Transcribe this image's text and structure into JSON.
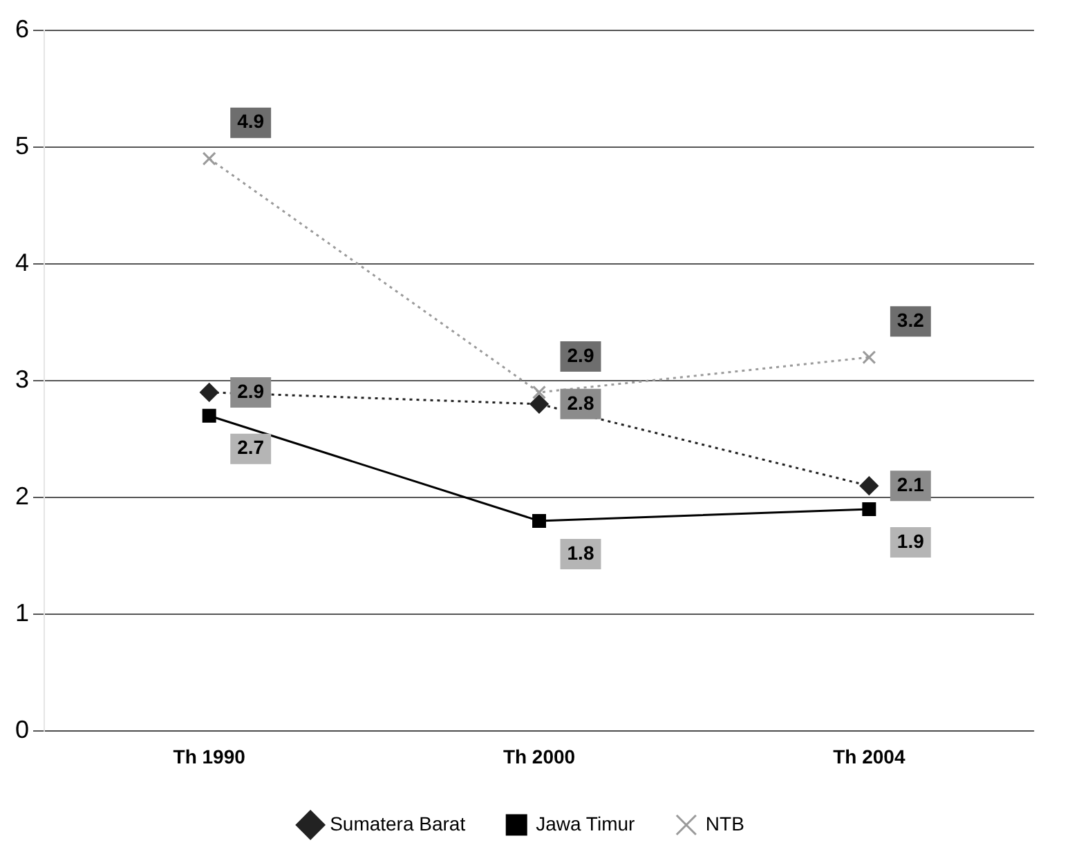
{
  "chart_data": {
    "type": "line",
    "categories": [
      "Th 1990",
      "Th 2000",
      "Th 2004"
    ],
    "series": [
      {
        "name": "Sumatera Barat",
        "color": "#222222",
        "values": [
          2.9,
          2.8,
          2.1
        ],
        "marker": "diamond",
        "line_style": "dotted"
      },
      {
        "name": "Jawa Timur",
        "color": "#000000",
        "values": [
          2.7,
          1.8,
          1.9
        ],
        "marker": "square",
        "line_style": "solid"
      },
      {
        "name": "NTB",
        "color": "#9a9a9a",
        "values": [
          4.9,
          2.9,
          3.2
        ],
        "marker": "cross",
        "line_style": "dotted"
      }
    ],
    "ylim": [
      0,
      6
    ],
    "yticks": [
      0,
      1,
      2,
      3,
      4,
      5,
      6
    ],
    "grid": "y",
    "legend": "bottom",
    "data_labels": true
  }
}
